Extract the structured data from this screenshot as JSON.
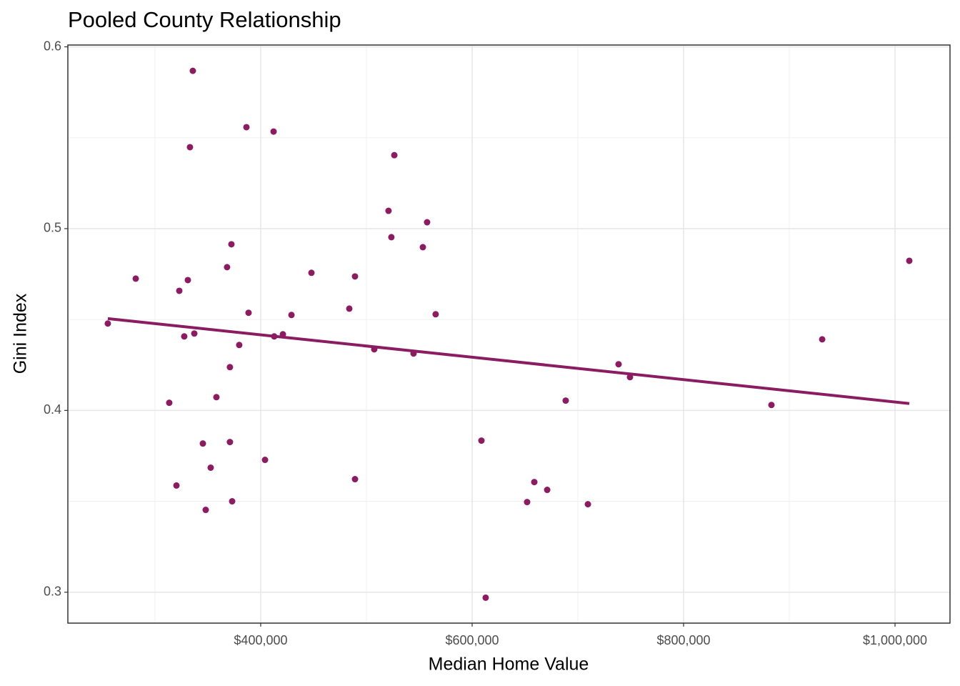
{
  "chart_data": {
    "type": "scatter",
    "title": "Pooled County Relationship",
    "x_label": "Median Home Value",
    "y_label": "Gini Index",
    "color": "#8b1c62",
    "grid": true,
    "xlim": [
      217600,
      1052000
    ],
    "ylim": [
      0.283,
      0.601
    ],
    "xticks": [
      {
        "value": 400000,
        "label": "$400,000"
      },
      {
        "value": 600000,
        "label": "$600,000"
      },
      {
        "value": 800000,
        "label": "$800,000"
      },
      {
        "value": 1000000,
        "label": "$1,000,000"
      }
    ],
    "yticks": [
      0.3,
      0.4,
      0.5,
      0.6
    ],
    "x_minor_grid": [
      300000,
      500000,
      700000,
      900000
    ],
    "y_minor_grid": [
      0.35,
      0.45,
      0.55
    ],
    "x": [
      255400,
      281800,
      313500,
      320300,
      323000,
      327700,
      331100,
      333100,
      335800,
      337200,
      345300,
      348000,
      352700,
      358100,
      368200,
      370900,
      370900,
      372300,
      373000,
      379700,
      386500,
      388500,
      404100,
      412200,
      412800,
      421000,
      429100,
      448000,
      483800,
      489200,
      489200,
      507400,
      520900,
      523600,
      526400,
      544600,
      553400,
      557400,
      565500,
      608800,
      612800,
      652000,
      658800,
      671000,
      688500,
      709500,
      738500,
      749300,
      883100,
      931100,
      1013500
    ],
    "y": [
      0.4478,
      0.4725,
      0.4042,
      0.3587,
      0.4658,
      0.4407,
      0.4717,
      0.5448,
      0.5868,
      0.4423,
      0.3818,
      0.3453,
      0.3685,
      0.4073,
      0.4788,
      0.4238,
      0.3826,
      0.4914,
      0.35,
      0.436,
      0.5558,
      0.4537,
      0.3728,
      0.5534,
      0.4407,
      0.4419,
      0.4525,
      0.4757,
      0.456,
      0.3622,
      0.4737,
      0.4336,
      0.5098,
      0.4953,
      0.5404,
      0.4313,
      0.4898,
      0.5035,
      0.4529,
      0.3834,
      0.297,
      0.3496,
      0.3606,
      0.3563,
      0.4054,
      0.3484,
      0.4254,
      0.4183,
      0.403,
      0.4391,
      0.4823
    ],
    "trend": {
      "x": [
        255400,
        1013500
      ],
      "y": [
        0.4505,
        0.4038
      ]
    }
  }
}
